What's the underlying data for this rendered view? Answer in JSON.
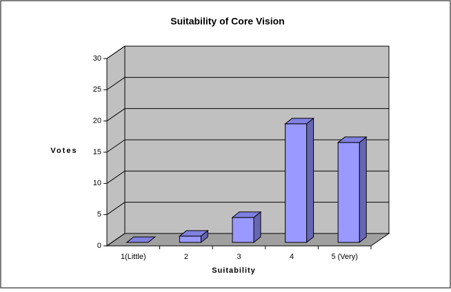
{
  "chart_data": {
    "type": "bar",
    "title": "Suitability of Core Vision",
    "categories": [
      "1(Little)",
      "2",
      "3",
      "4",
      "5 (Very)"
    ],
    "values": [
      0,
      1,
      4,
      19,
      16
    ],
    "color": "#9999ff",
    "x_label": "Suitability",
    "y_label": "Votes",
    "ylim": [
      0,
      30
    ],
    "yticks": [
      0,
      5,
      10,
      15,
      20,
      25,
      30
    ],
    "grid": true
  }
}
